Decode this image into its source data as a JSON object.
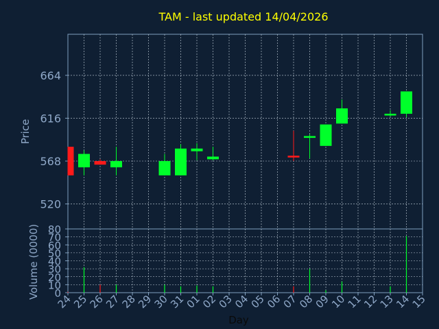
{
  "chart_data": [
    {
      "type": "candlestick",
      "title": "TAM - last updated 14/04/2026",
      "ylabel": "Price",
      "xlabel": "Day",
      "ylim": [
        492,
        710
      ],
      "yticks": [
        520,
        568,
        616,
        664
      ],
      "grid": true,
      "x": [
        "24",
        "25",
        "26",
        "27",
        "28",
        "29",
        "30",
        "31",
        "01",
        "02",
        "03",
        "04",
        "05",
        "06",
        "07",
        "08",
        "09",
        "10",
        "11",
        "12",
        "13",
        "14",
        "15"
      ],
      "candles": [
        {
          "x": "24",
          "open": 584,
          "high": 584,
          "low": 552,
          "close": 552
        },
        {
          "x": "25",
          "open": 561,
          "high": 580,
          "low": 552,
          "close": 576
        },
        {
          "x": "26",
          "open": 568,
          "high": 570,
          "low": 564,
          "close": 564
        },
        {
          "x": "27",
          "open": 561,
          "high": 584,
          "low": 552,
          "close": 568
        },
        {
          "x": "30",
          "open": 552,
          "high": 576,
          "low": 552,
          "close": 568
        },
        {
          "x": "31",
          "open": 552,
          "high": 587,
          "low": 552,
          "close": 582
        },
        {
          "x": "01",
          "open": 579,
          "high": 588,
          "low": 569,
          "close": 582
        },
        {
          "x": "02",
          "open": 570,
          "high": 584,
          "low": 569,
          "close": 573
        },
        {
          "x": "07",
          "open": 574,
          "high": 602,
          "low": 568,
          "close": 572
        },
        {
          "x": "08",
          "open": 594,
          "high": 598,
          "low": 571,
          "close": 596
        },
        {
          "x": "09",
          "open": 585,
          "high": 609,
          "low": 585,
          "close": 609
        },
        {
          "x": "10",
          "open": 610,
          "high": 637,
          "low": 610,
          "close": 627
        },
        {
          "x": "13",
          "open": 619,
          "high": 625,
          "low": 618,
          "close": 621
        },
        {
          "x": "14",
          "open": 621,
          "high": 646,
          "low": 617,
          "close": 646
        }
      ],
      "colors": {
        "up": "#00ff2a",
        "down": "#ff1a1a"
      }
    },
    {
      "type": "bar",
      "ylabel": "Volume (0000)",
      "xlabel": "Day",
      "ylim": [
        0,
        80
      ],
      "yticks": [
        0,
        10,
        20,
        30,
        40,
        50,
        60,
        70,
        80
      ],
      "x": [
        "24",
        "25",
        "26",
        "27",
        "28",
        "29",
        "30",
        "31",
        "01",
        "02",
        "03",
        "04",
        "05",
        "06",
        "07",
        "08",
        "09",
        "10",
        "11",
        "12",
        "13",
        "14",
        "15"
      ],
      "values": [
        {
          "x": "24",
          "value": 1,
          "dir": "down"
        },
        {
          "x": "25",
          "value": 32,
          "dir": "up"
        },
        {
          "x": "26",
          "value": 10,
          "dir": "down"
        },
        {
          "x": "27",
          "value": 10,
          "dir": "up"
        },
        {
          "x": "30",
          "value": 10,
          "dir": "up"
        },
        {
          "x": "31",
          "value": 8,
          "dir": "up"
        },
        {
          "x": "01",
          "value": 9,
          "dir": "up"
        },
        {
          "x": "02",
          "value": 8,
          "dir": "up"
        },
        {
          "x": "07",
          "value": 8,
          "dir": "down"
        },
        {
          "x": "08",
          "value": 30,
          "dir": "up"
        },
        {
          "x": "09",
          "value": 3,
          "dir": "up"
        },
        {
          "x": "10",
          "value": 14,
          "dir": "up"
        },
        {
          "x": "13",
          "value": 8,
          "dir": "up"
        },
        {
          "x": "14",
          "value": 71,
          "dir": "up"
        }
      ]
    }
  ],
  "colors": {
    "background": "#0f1f33",
    "axis": "#7f9fbf",
    "grid": "#c8d4e0",
    "title": "#ffff00",
    "label": "#8fa8c8"
  }
}
